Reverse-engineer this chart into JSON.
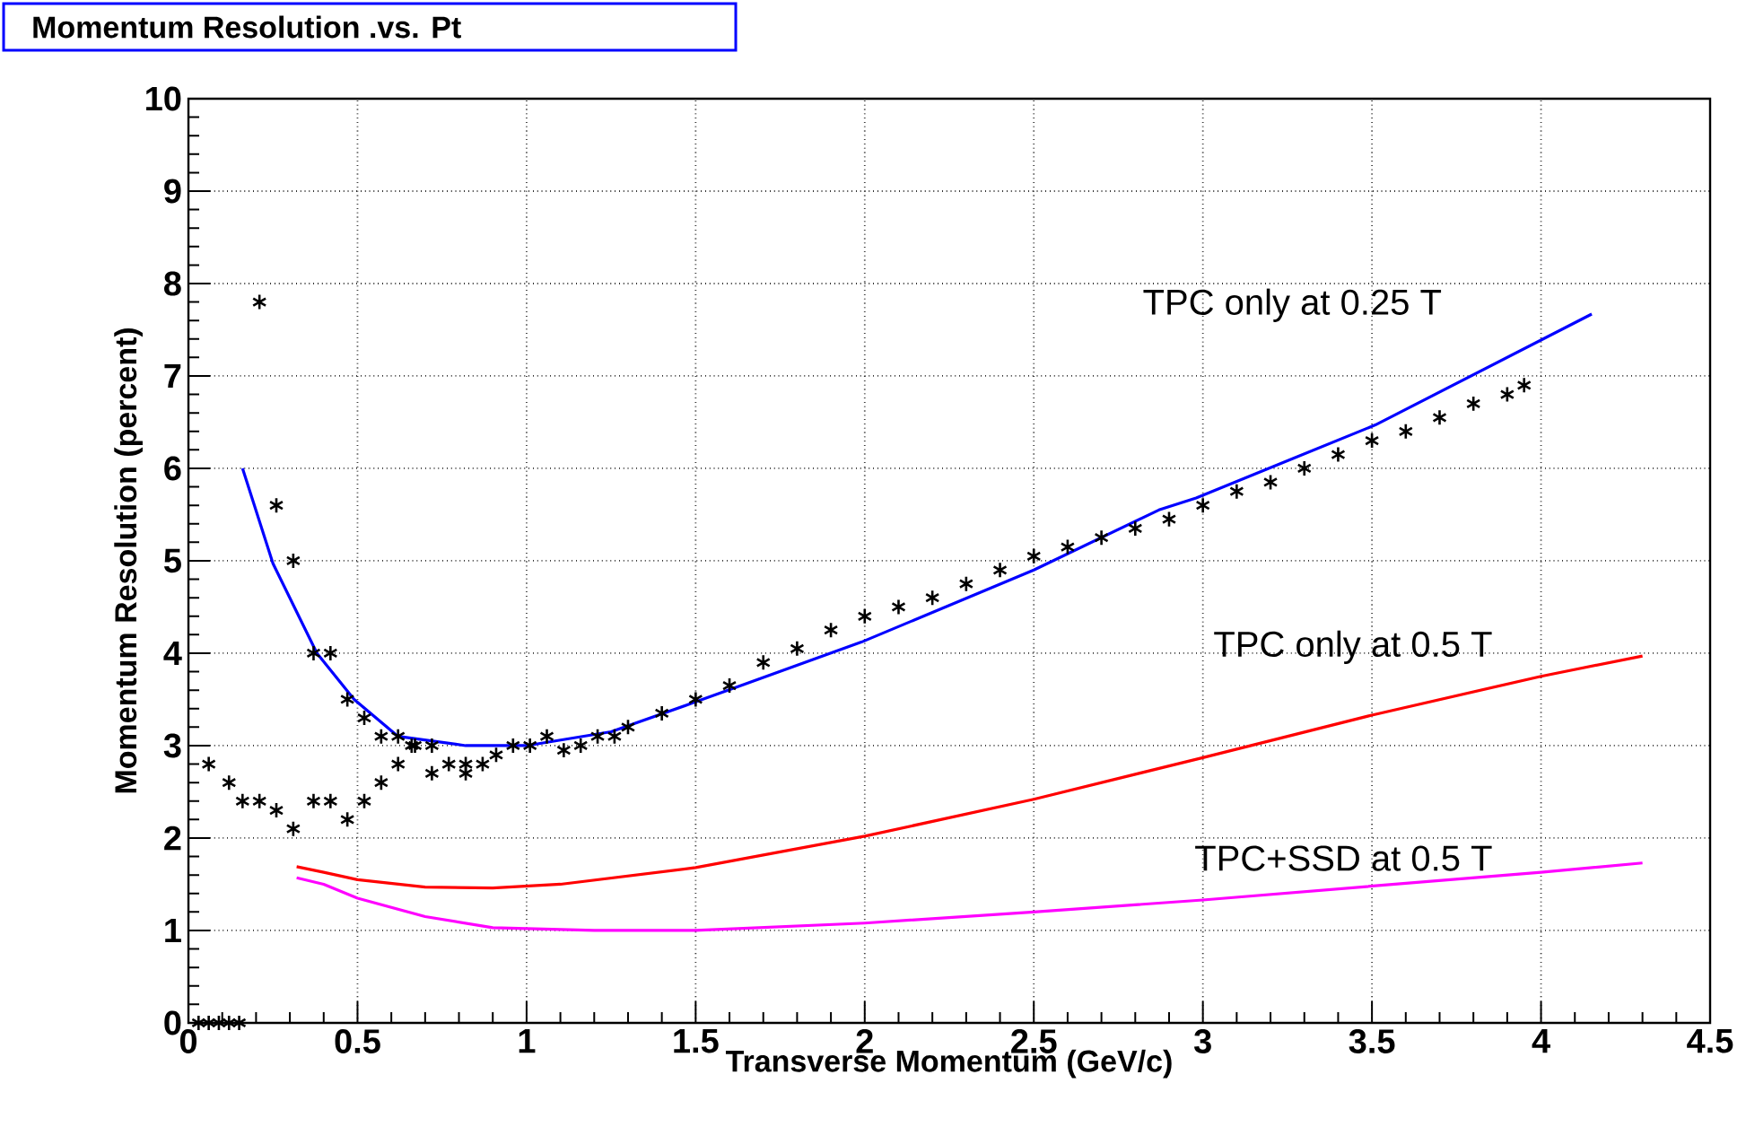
{
  "chart_data": {
    "type": "line",
    "title": "Momentum Resolution .vs. Pt",
    "xlabel": "Transverse Momentum (GeV/c)",
    "ylabel": "Momentum Resolution (percent)",
    "xlim": [
      0,
      4.5
    ],
    "ylim": [
      0,
      10
    ],
    "xticks": [
      0,
      0.5,
      1,
      1.5,
      2,
      2.5,
      3,
      3.5,
      4,
      4.5
    ],
    "yticks": [
      0,
      1,
      2,
      3,
      4,
      5,
      6,
      7,
      8,
      9,
      10
    ],
    "grid": true,
    "series": [
      {
        "type": "scatter",
        "marker": "cross",
        "color": "#000000",
        "x": [
          0.03,
          0.06,
          0.09,
          0.12,
          0.15,
          0.06,
          0.12,
          0.16,
          0.21,
          0.26,
          0.31,
          0.37,
          0.42,
          0.47,
          0.52,
          0.57,
          0.62,
          0.66,
          0.72,
          0.77,
          0.82,
          0.82,
          0.87,
          0.21,
          0.26,
          0.31,
          0.37,
          0.42,
          0.47,
          0.52,
          0.57,
          0.62,
          0.67,
          0.72,
          0.91,
          0.96,
          1.01,
          1.06,
          1.11,
          1.16,
          1.21,
          1.26,
          1.3,
          1.4,
          1.5,
          1.6,
          1.7,
          1.8,
          1.9,
          2.0,
          2.1,
          2.2,
          2.3,
          2.4,
          2.5,
          2.6,
          2.7,
          2.8,
          2.9,
          3.0,
          3.1,
          3.2,
          3.3,
          3.4,
          3.5,
          3.6,
          3.7,
          3.8,
          3.9,
          3.95
        ],
        "values": [
          0,
          0,
          0,
          0,
          0,
          2.8,
          2.6,
          2.4,
          2.4,
          2.3,
          2.1,
          2.4,
          2.4,
          2.2,
          2.4,
          2.6,
          2.8,
          3.0,
          2.7,
          2.8,
          2.7,
          2.8,
          2.8,
          7.8,
          5.6,
          5.0,
          4.0,
          4.0,
          3.5,
          3.3,
          3.1,
          3.1,
          3.0,
          3.0,
          2.9,
          3.0,
          3.0,
          3.1,
          2.95,
          3.0,
          3.1,
          3.1,
          3.2,
          3.35,
          3.5,
          3.65,
          3.9,
          4.05,
          4.25,
          4.4,
          4.5,
          4.6,
          4.75,
          4.9,
          5.05,
          5.15,
          5.25,
          5.35,
          5.45,
          5.6,
          5.75,
          5.85,
          6.0,
          6.15,
          6.3,
          6.4,
          6.55,
          6.7,
          6.8,
          6.9
        ]
      },
      {
        "name": "TPC only at 0.25 T",
        "color": "#0000ff",
        "x": [
          0.16,
          0.25,
          0.38,
          0.49,
          0.62,
          0.82,
          1.0,
          1.25,
          1.49,
          1.99,
          2.5,
          2.87,
          2.98,
          3.51,
          4.15
        ],
        "values": [
          6.0,
          4.97,
          4.0,
          3.5,
          3.1,
          3.0,
          3.0,
          3.15,
          3.46,
          4.12,
          4.9,
          5.55,
          5.68,
          6.47,
          7.67
        ]
      },
      {
        "name": "TPC only at 0.5 T",
        "color": "#ff0000",
        "x": [
          0.32,
          0.4,
          0.5,
          0.7,
          0.9,
          1.1,
          1.5,
          2.0,
          2.5,
          3.0,
          3.5,
          4.0,
          4.3
        ],
        "values": [
          1.69,
          1.63,
          1.55,
          1.47,
          1.46,
          1.5,
          1.68,
          2.02,
          2.42,
          2.87,
          3.33,
          3.75,
          3.97
        ]
      },
      {
        "name": "TPC+SSD at 0.5 T",
        "color": "#ff00ff",
        "x": [
          0.32,
          0.4,
          0.5,
          0.7,
          0.9,
          1.2,
          1.5,
          2.0,
          2.5,
          3.0,
          3.5,
          4.0,
          4.3
        ],
        "values": [
          1.57,
          1.5,
          1.35,
          1.15,
          1.03,
          1.0,
          1.0,
          1.08,
          1.2,
          1.33,
          1.48,
          1.63,
          1.73
        ]
      }
    ]
  }
}
